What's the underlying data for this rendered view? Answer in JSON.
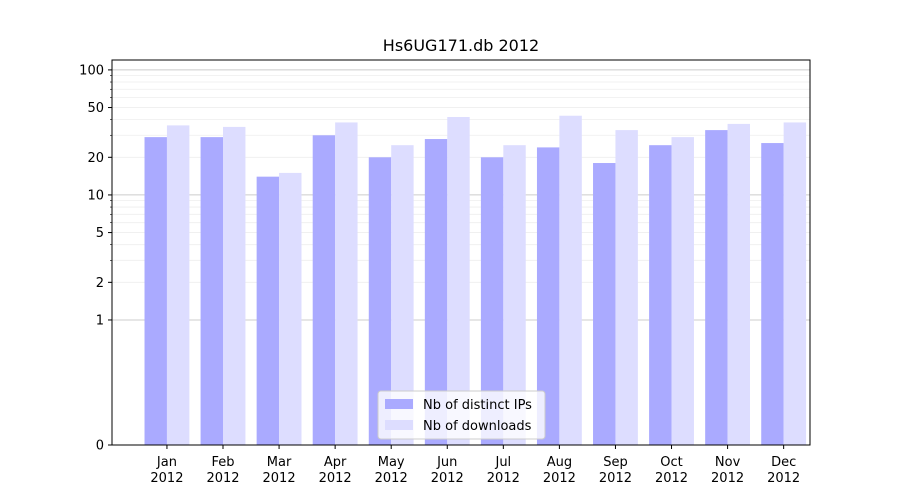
{
  "chart_data": {
    "type": "bar",
    "title": "Hs6UG171.db 2012",
    "xlabel": "",
    "ylabel": "",
    "yscale": "symlog",
    "ylim": [
      0,
      120
    ],
    "yticks": [
      0,
      1,
      2,
      5,
      10,
      20,
      50,
      100
    ],
    "categories": [
      [
        "Jan",
        "2012"
      ],
      [
        "Feb",
        "2012"
      ],
      [
        "Mar",
        "2012"
      ],
      [
        "Apr",
        "2012"
      ],
      [
        "May",
        "2012"
      ],
      [
        "Jun",
        "2012"
      ],
      [
        "Jul",
        "2012"
      ],
      [
        "Aug",
        "2012"
      ],
      [
        "Sep",
        "2012"
      ],
      [
        "Oct",
        "2012"
      ],
      [
        "Nov",
        "2012"
      ],
      [
        "Dec",
        "2012"
      ]
    ],
    "series": [
      {
        "name": "Nb of distinct IPs",
        "color": "#aaaaff",
        "values": [
          29,
          29,
          14,
          30,
          20,
          28,
          20,
          24,
          18,
          25,
          33,
          26
        ]
      },
      {
        "name": "Nb of downloads",
        "color": "#ddddff",
        "values": [
          36,
          35,
          15,
          38,
          25,
          42,
          25,
          43,
          33,
          29,
          37,
          38
        ]
      }
    ],
    "grid": true,
    "legend_position": "bottom-center",
    "major_grid_color": "#cccccc",
    "minor_grid_color": "#eeeeee"
  }
}
